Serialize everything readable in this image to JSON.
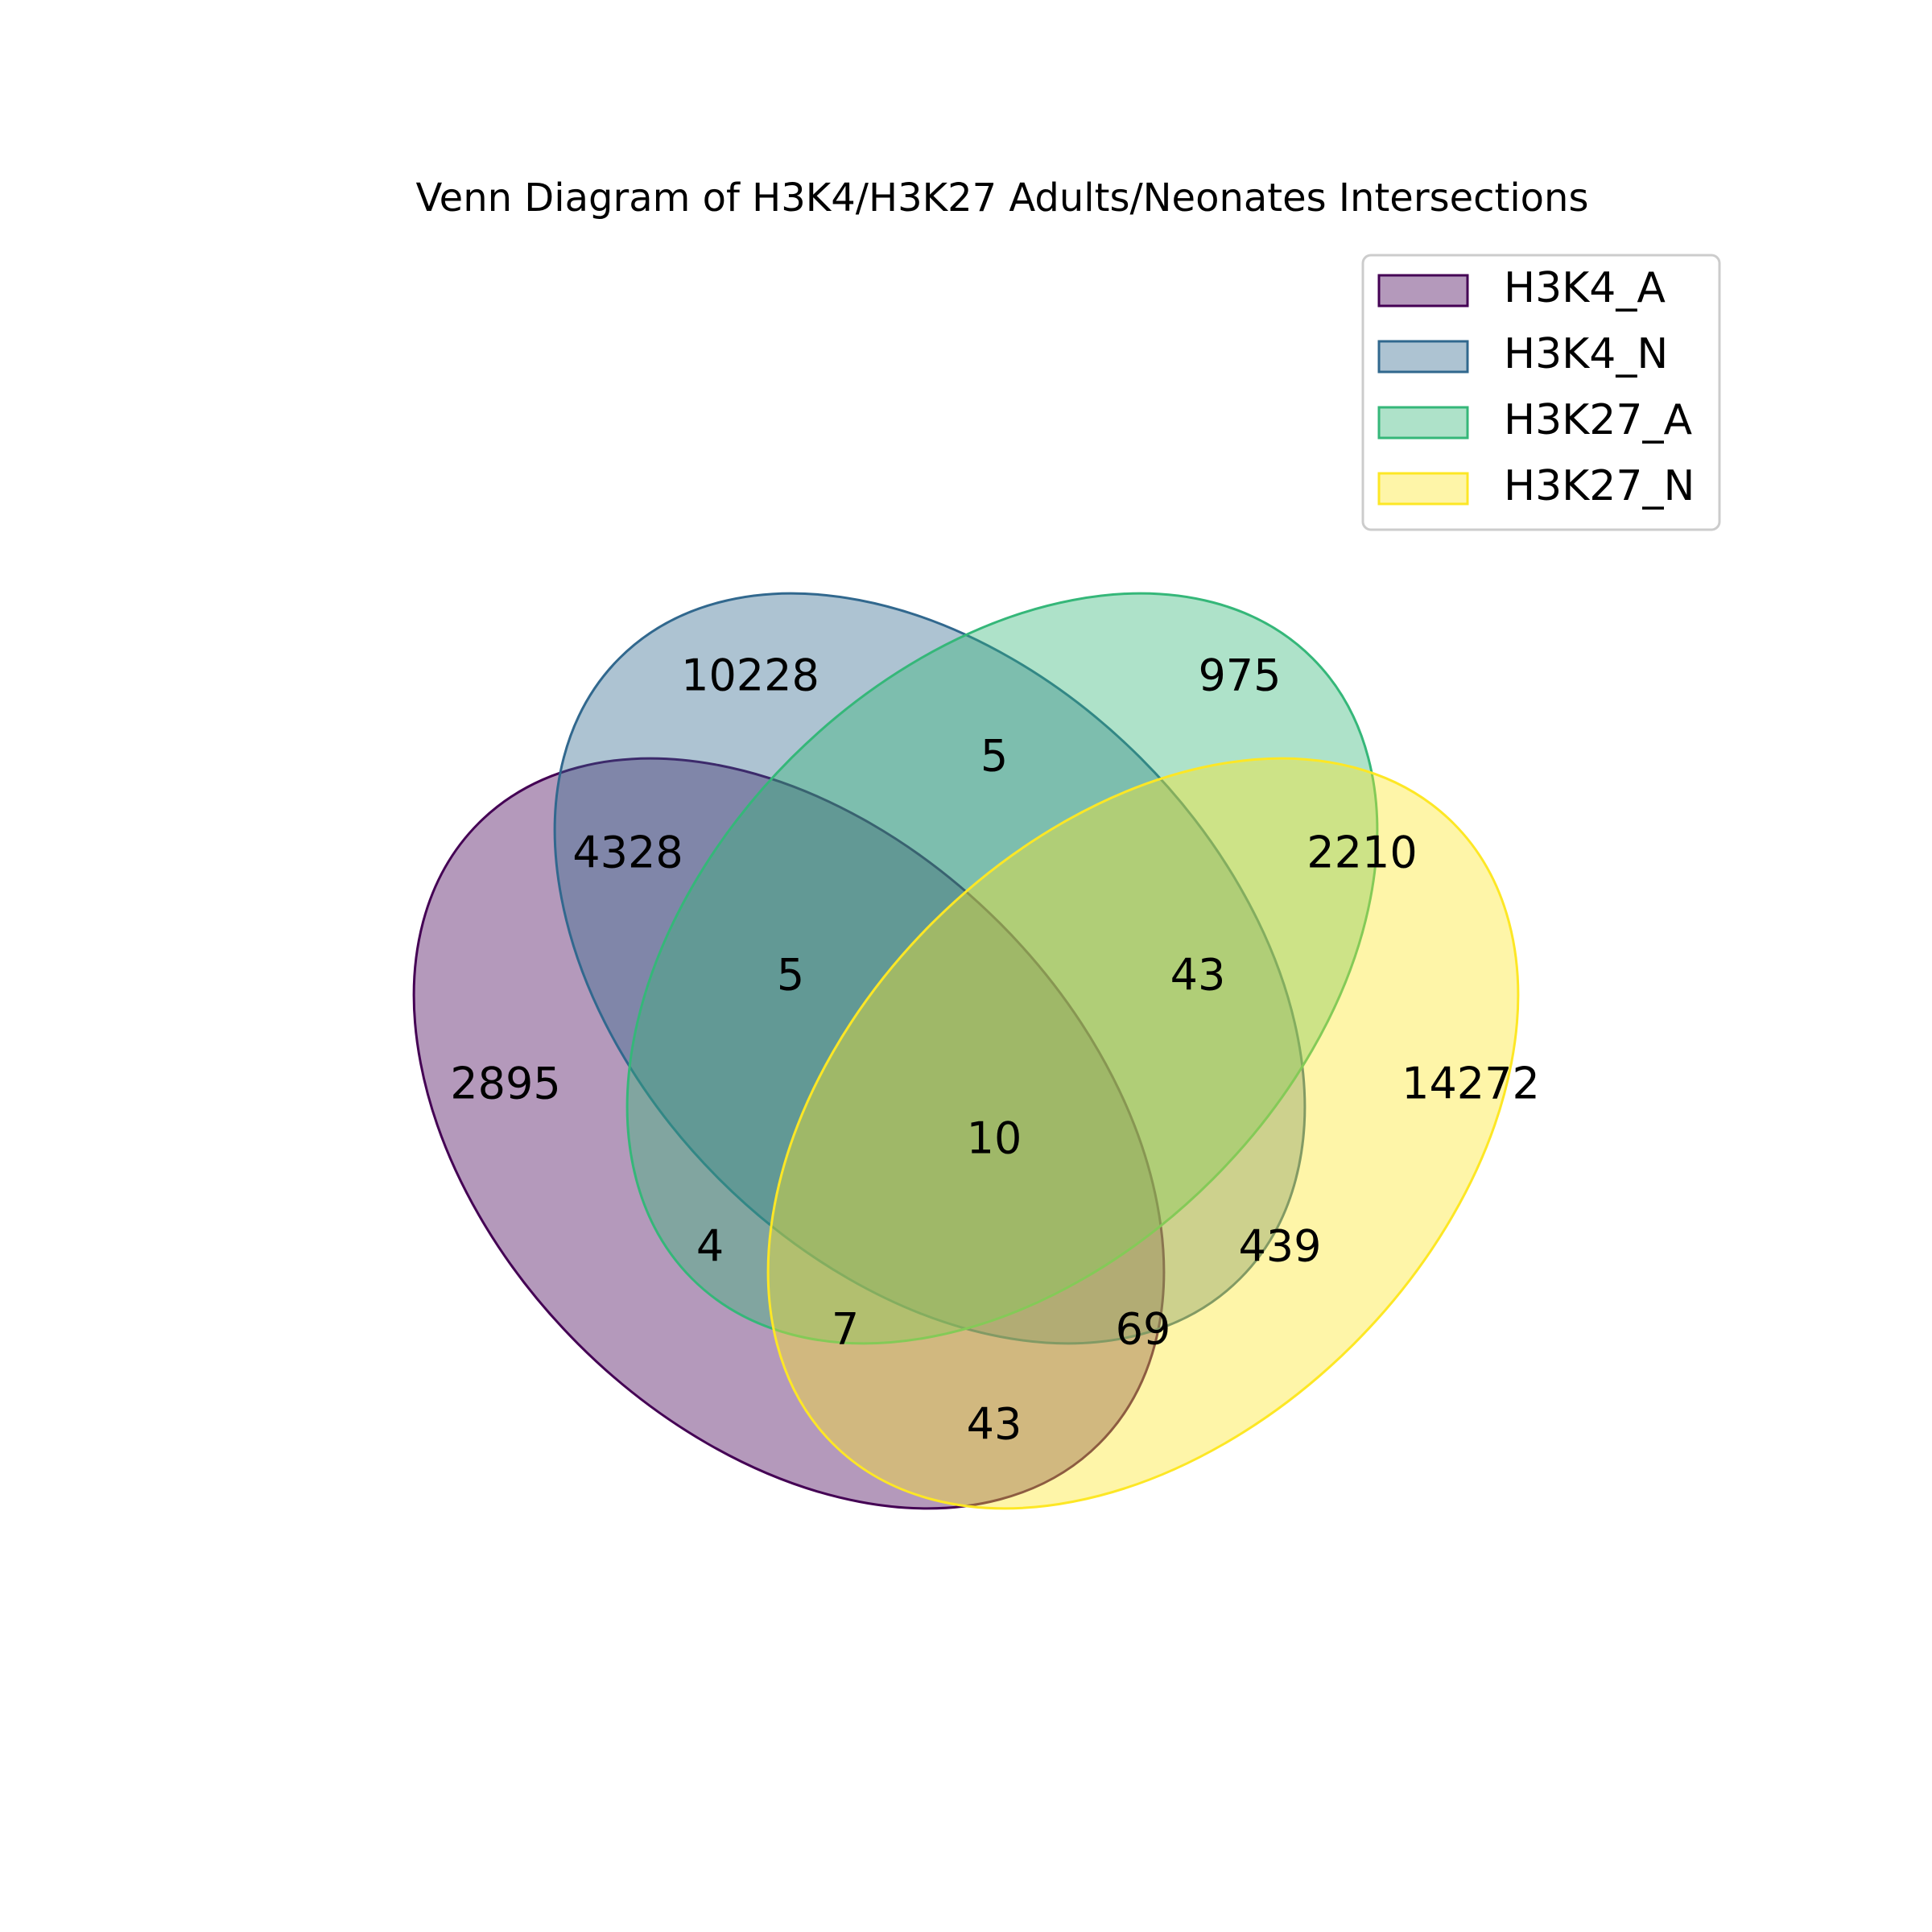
{
  "title": "Venn Diagram of H3K4/H3K27 Adults/Neonates Intersections",
  "sets": [
    {
      "key": "A",
      "name": "H3K4_A",
      "fill": "#440154",
      "stroke": "#440154"
    },
    {
      "key": "B",
      "name": "H3K4_N",
      "fill": "#31688e",
      "stroke": "#31688e"
    },
    {
      "key": "C",
      "name": "H3K27_A",
      "fill": "#35b779",
      "stroke": "#35b779"
    },
    {
      "key": "D",
      "name": "H3K27_N",
      "fill": "#fde725",
      "stroke": "#fde725"
    }
  ],
  "regions": {
    "A": "2895",
    "B": "10228",
    "C": "975",
    "D": "14272",
    "AB": "4328",
    "BC": "5",
    "CD": "2210",
    "AD": "43",
    "ABC": "5",
    "BCD": "43",
    "ACD": "69",
    "ABD": "7",
    "AC": "4",
    "BD": "439",
    "ABCD": "10"
  },
  "legend": {
    "location": "upper-right"
  }
}
